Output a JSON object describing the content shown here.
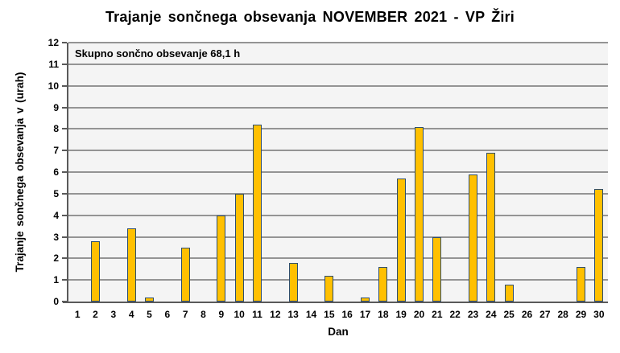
{
  "page": {
    "title": "Trajanje sončnega obsevanja NOVEMBER 2021 - VP Žiri"
  },
  "chart_data": {
    "type": "bar",
    "title": "Trajanje sončnega obsevanja NOVEMBER 2021 - VP Žiri",
    "xlabel": "Dan",
    "ylabel": "Trajanje sončnega obsevanja v (urah)",
    "annotation": "Skupno sončno obsevanje 68,1 h",
    "total_hours_label": "68,1 h",
    "categories": [
      "1",
      "2",
      "3",
      "4",
      "5",
      "6",
      "7",
      "8",
      "9",
      "10",
      "11",
      "12",
      "13",
      "14",
      "15",
      "16",
      "17",
      "18",
      "19",
      "20",
      "21",
      "22",
      "23",
      "24",
      "25",
      "26",
      "27",
      "28",
      "29",
      "30"
    ],
    "values": [
      0,
      2.8,
      0,
      3.4,
      0.2,
      0,
      2.5,
      0,
      4.0,
      5.0,
      8.2,
      0,
      1.8,
      0,
      1.2,
      0,
      0.2,
      1.6,
      5.7,
      8.1,
      3.0,
      0,
      5.9,
      6.9,
      0.8,
      0,
      0,
      0,
      1.6,
      5.2
    ],
    "ylim": [
      0,
      12
    ],
    "ytick_step": 1,
    "grid": true,
    "legend": null
  },
  "colors": {
    "bar_fill": "#FFC000",
    "bar_border": "#2E4E6F",
    "plot_bg": "#F4F4F4",
    "gridline": "#949494",
    "axis": "#5A5A5A",
    "text": "#000000",
    "background": "#FFFFFF"
  }
}
